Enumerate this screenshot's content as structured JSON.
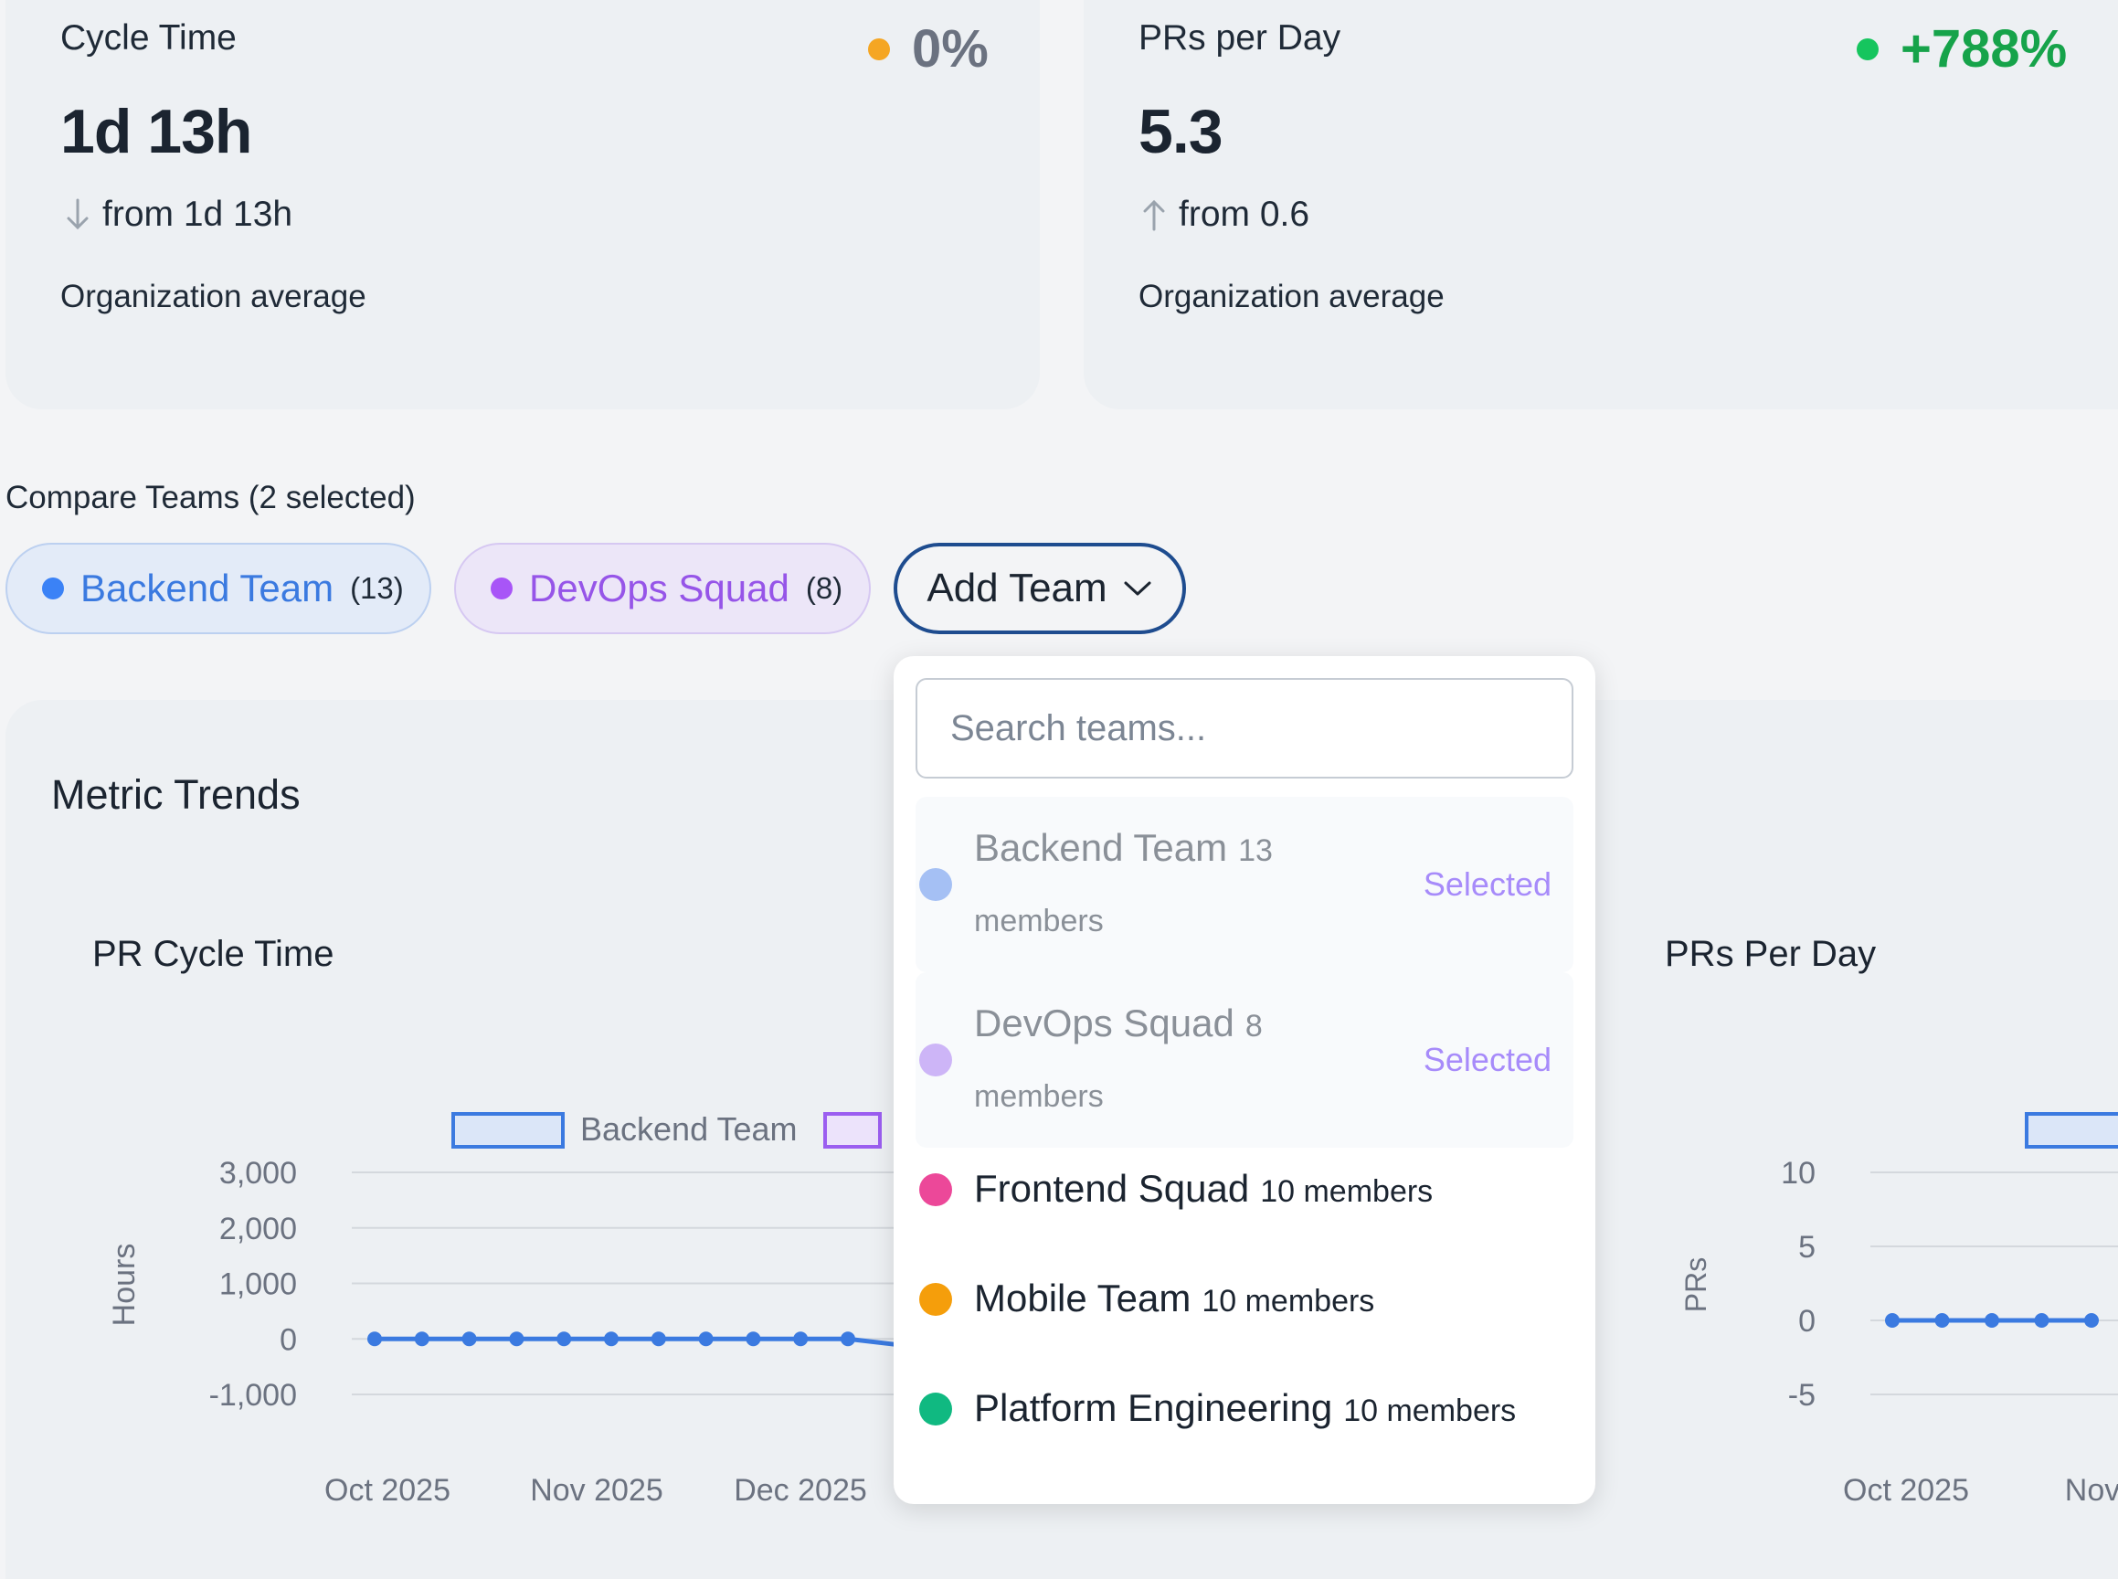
{
  "stats": [
    {
      "title": "Cycle Time",
      "value": "1d 13h",
      "from": "from 1d 13h",
      "direction": "down",
      "change": "0%",
      "change_color": "#f5a623",
      "subtitle": "Organization average"
    },
    {
      "title": "PRs per Day",
      "value": "5.3",
      "from": "from 0.6",
      "direction": "up",
      "change": "+788%",
      "change_color": "#16a34a",
      "subtitle": "Organization average"
    }
  ],
  "compare": {
    "label": "Compare Teams (2 selected)",
    "chips": [
      {
        "name": "Backend Team",
        "count": "(13)",
        "color": "#3b82f6"
      },
      {
        "name": "DevOps Squad",
        "count": "(8)",
        "color": "#a855f7"
      }
    ],
    "add_button": "Add Team"
  },
  "trends": {
    "title": "Metric Trends",
    "charts": [
      {
        "title": "PR Cycle Time",
        "legend": [
          "Backend Team"
        ],
        "ylabel": "Hours",
        "y_ticks": [
          "3,000",
          "2,000",
          "1,000",
          "0",
          "-1,000"
        ],
        "x_ticks": [
          "Oct 2025",
          "Nov 2025",
          "Dec 2025"
        ]
      },
      {
        "title": "PRs Per Day",
        "ylabel": "PRs",
        "y_ticks": [
          "10",
          "5",
          "0",
          "-5"
        ],
        "x_ticks": [
          "Oct 2025",
          "Nov"
        ]
      }
    ]
  },
  "chart_data": [
    {
      "type": "line",
      "title": "PR Cycle Time",
      "ylabel": "Hours",
      "ylim": [
        -1000,
        3000
      ],
      "series": [
        {
          "name": "Backend Team",
          "color": "#3b7ae0",
          "values": [
            0,
            0,
            0,
            0,
            0,
            0,
            0,
            0,
            0,
            0,
            0,
            -100
          ]
        }
      ]
    },
    {
      "type": "line",
      "title": "PRs Per Day",
      "ylabel": "PRs",
      "ylim": [
        -5,
        10
      ],
      "series": [
        {
          "color": "#3b7ae0",
          "values": [
            0,
            0,
            0,
            0,
            0
          ]
        }
      ]
    }
  ],
  "dropdown": {
    "search_placeholder": "Search teams...",
    "options": [
      {
        "name": "Backend Team",
        "members": "13 members",
        "members_num": "13",
        "members_word": "members",
        "color": "#a5c0f4",
        "selected_label": "Selected"
      },
      {
        "name": "DevOps Squad",
        "members": "8 members",
        "members_num": "8",
        "members_word": "members",
        "color": "#cdb5f7",
        "selected_label": "Selected"
      },
      {
        "name": "Frontend Squad",
        "members": "10 members",
        "color": "#ec4899"
      },
      {
        "name": "Mobile Team",
        "members": "10 members",
        "color": "#f59e0b"
      },
      {
        "name": "Platform Engineering",
        "members": "10 members",
        "color": "#10b981"
      }
    ]
  }
}
